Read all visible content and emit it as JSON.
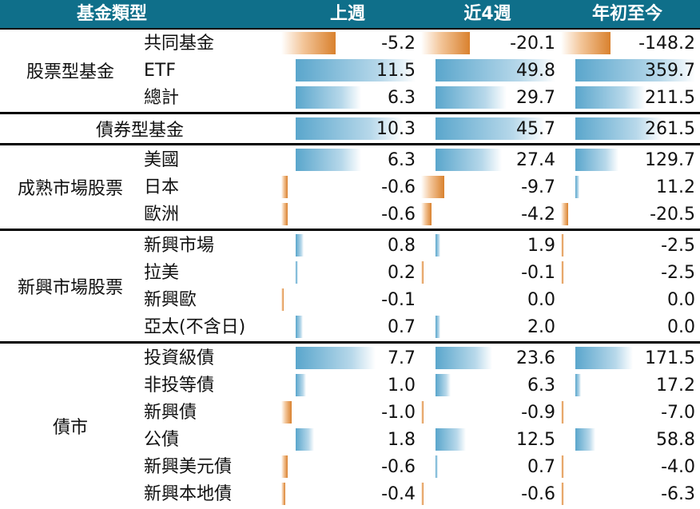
{
  "header": {
    "type_label": "基金類型",
    "col1": "上週",
    "col2": "近4週",
    "col3": "年初至今"
  },
  "groups": [
    {
      "name": "股票型基金",
      "rows": [
        {
          "label": "共同基金",
          "values": [
            "-5.2",
            "-20.1",
            "-148.2"
          ]
        },
        {
          "label": "ETF",
          "values": [
            "11.5",
            "49.8",
            "359.7"
          ]
        },
        {
          "label": "總計",
          "values": [
            "6.3",
            "29.7",
            "211.5"
          ]
        }
      ]
    },
    {
      "name": "債券型基金",
      "rows": [
        {
          "label": "",
          "values": [
            "10.3",
            "45.7",
            "261.5"
          ]
        }
      ]
    },
    {
      "name": "成熟市場股票",
      "rows": [
        {
          "label": "美國",
          "values": [
            "6.3",
            "27.4",
            "129.7"
          ]
        },
        {
          "label": "日本",
          "values": [
            "-0.6",
            "-9.7",
            "11.2"
          ]
        },
        {
          "label": "歐洲",
          "values": [
            "-0.6",
            "-4.2",
            "-20.5"
          ]
        }
      ]
    },
    {
      "name": "新興市場股票",
      "rows": [
        {
          "label": "新興市場",
          "values": [
            "0.8",
            "1.9",
            "-2.5"
          ]
        },
        {
          "label": "拉美",
          "values": [
            "0.2",
            "-0.1",
            "-2.5"
          ]
        },
        {
          "label": "新興歐",
          "values": [
            "-0.1",
            "0.0",
            "0.0"
          ]
        },
        {
          "label": "亞太(不含日)",
          "values": [
            "0.7",
            "2.0",
            "0.0"
          ]
        }
      ]
    },
    {
      "name": "債市",
      "rows": [
        {
          "label": "投資級債",
          "values": [
            "7.7",
            "23.6",
            "171.5"
          ]
        },
        {
          "label": "非投等債",
          "values": [
            "1.0",
            "6.3",
            "17.2"
          ]
        },
        {
          "label": "新興債",
          "values": [
            "-1.0",
            "-0.9",
            "-7.0"
          ]
        },
        {
          "label": "公債",
          "values": [
            "1.8",
            "12.5",
            "58.8"
          ]
        },
        {
          "label": "新興美元債",
          "values": [
            "-0.6",
            "0.7",
            "-4.0"
          ]
        },
        {
          "label": "新興本地債",
          "values": [
            "-0.4",
            "-0.6",
            "-6.3"
          ]
        }
      ]
    }
  ],
  "colors": {
    "header_bg": "#0f6f8a",
    "positive_bar": "#5aa6cc",
    "negative_bar": "#d9812e"
  }
}
